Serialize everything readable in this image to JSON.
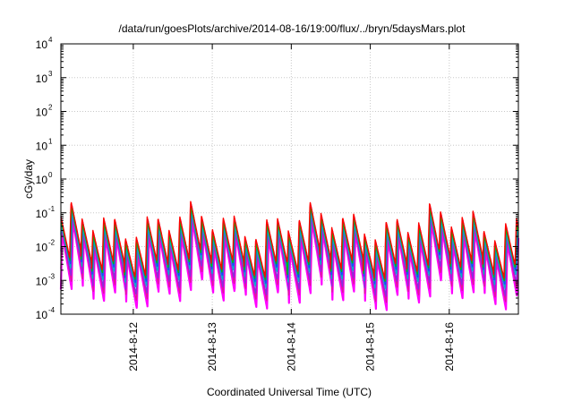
{
  "chart_data": {
    "type": "line",
    "title": "/data/run/goesPlots/archive/2014-08-16/19:00/flux/../bryn/5daysMars.plot",
    "xlabel": "Coordinated Universal Time (UTC)",
    "ylabel": "cGy/day",
    "y_scale": "log",
    "ylim": [
      0.0001,
      10000
    ],
    "y_ticks": [
      {
        "base": "10",
        "exp": "4",
        "value": 10000
      },
      {
        "base": "10",
        "exp": "3",
        "value": 1000
      },
      {
        "base": "10",
        "exp": "2",
        "value": 100
      },
      {
        "base": "10",
        "exp": "1",
        "value": 10
      },
      {
        "base": "10",
        "exp": "0",
        "value": 1
      },
      {
        "base": "10",
        "exp": "-1",
        "value": 0.1
      },
      {
        "base": "10",
        "exp": "-2",
        "value": 0.01
      },
      {
        "base": "10",
        "exp": "-3",
        "value": 0.001
      },
      {
        "base": "10",
        "exp": "-4",
        "value": 0.0001
      }
    ],
    "x_range_days": [
      "2014-08-11 02:00",
      "2014-08-16 21:00"
    ],
    "x_ticks": [
      "2014-8-12",
      "2014-8-13",
      "2014-8-14",
      "2014-8-15",
      "2014-8-16"
    ],
    "grid": true,
    "oscillation_period_hours": 3.3,
    "series": [
      {
        "color": "#ff00ff",
        "peak": 0.015,
        "trough": 0.00035
      },
      {
        "color": "#e0179b",
        "peak": 0.018,
        "trough": 0.0006
      },
      {
        "color": "#8a2be2",
        "peak": 0.022,
        "trough": 0.0009
      },
      {
        "color": "#00b4c8",
        "peak": 0.028,
        "trough": 0.0015
      },
      {
        "color": "#1e3cff",
        "peak": 0.045,
        "trough": 0.002
      },
      {
        "color": "#00c000",
        "peak": 0.04,
        "trough": 0.0025
      },
      {
        "color": "#ff0000",
        "peak": 0.055,
        "trough": 0.003
      }
    ]
  }
}
